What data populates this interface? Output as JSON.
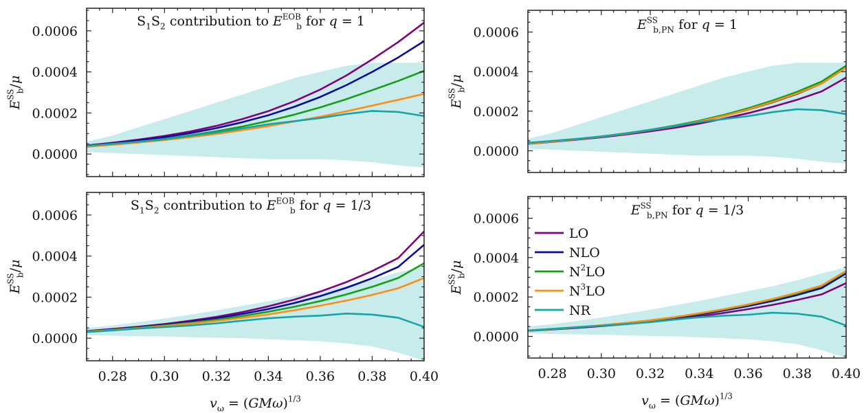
{
  "series_styles": [
    {
      "name": "LO",
      "color": "#800080"
    },
    {
      "name": "NLO",
      "color": "#0a0aa0"
    },
    {
      "name": "N²LO",
      "color": "#14a014"
    },
    {
      "name": "N³LO",
      "color": "#ff8c14"
    },
    {
      "name": "NR",
      "color": "#14a5a5"
    }
  ],
  "band_color": "#c8eceb",
  "legend_panel": 3,
  "xlabel": "v_ω = (GMω)^{1/3}",
  "chart_data": [
    {
      "type": "line",
      "title": "S₁S₂ contribution to E_b^EOB for q = 1",
      "ylabel": "E_b^SS/μ",
      "xlim": [
        0.27,
        0.4
      ],
      "ylim": [
        -0.00011,
        0.00071
      ],
      "xticks": [
        "0.28",
        "0.30",
        "0.32",
        "0.34",
        "0.36",
        "0.38",
        "0.40"
      ],
      "yticks": [
        "0.0000",
        "0.0002",
        "0.0004",
        "0.0006"
      ],
      "x": [
        0.27,
        0.28,
        0.29,
        0.3,
        0.31,
        0.32,
        0.33,
        0.34,
        0.35,
        0.36,
        0.37,
        0.38,
        0.39,
        0.4
      ],
      "series": [
        {
          "name": "LO",
          "values": [
            4.2e-05,
            5.5e-05,
            7e-05,
            8.8e-05,
            0.00011,
            0.000137,
            0.00017,
            0.000209,
            0.000257,
            0.000314,
            0.000382,
            0.000461,
            0.000545,
            0.00064
          ]
        },
        {
          "name": "NLO",
          "values": [
            4e-05,
            5.2e-05,
            6.6e-05,
            8.2e-05,
            0.000102,
            0.000126,
            0.000155,
            0.000189,
            0.00023,
            0.000278,
            0.000335,
            0.0004,
            0.00047,
            0.00055
          ]
        },
        {
          "name": "N²LO",
          "values": [
            3.7e-05,
            4.8e-05,
            6e-05,
            7.4e-05,
            9.1e-05,
            0.000111,
            0.000134,
            0.000161,
            0.000192,
            0.000227,
            0.000267,
            0.000311,
            0.000356,
            0.000405
          ]
        },
        {
          "name": "N³LO",
          "values": [
            3.5e-05,
            4.5e-05,
            5.6e-05,
            6.8e-05,
            8.2e-05,
            9.8e-05,
            0.000116,
            0.000136,
            0.000158,
            0.000182,
            0.000208,
            0.000236,
            0.000264,
            0.000293
          ]
        },
        {
          "name": "NR",
          "values": [
            4e-05,
            5e-05,
            6e-05,
            7.2e-05,
            8.8e-05,
            0.000105,
            0.000125,
            0.000145,
            0.00016,
            0.000175,
            0.000195,
            0.00021,
            0.000205,
            0.000185
          ]
        }
      ],
      "band": {
        "lower": [
          1e-05,
          5e-06,
          0.0,
          -5e-06,
          -1e-05,
          -1.5e-05,
          -2e-05,
          -2.5e-05,
          -2.5e-05,
          -2.5e-05,
          -3e-05,
          -4e-05,
          -5.5e-05,
          -6.5e-05
        ],
        "upper": [
          6e-05,
          9e-05,
          0.00013,
          0.00017,
          0.00021,
          0.00025,
          0.00029,
          0.00033,
          0.00037,
          0.0004,
          0.00043,
          0.000445,
          0.000445,
          0.000445
        ]
      }
    },
    {
      "type": "line",
      "title": "E_{b,PN}^SS for q = 1",
      "ylabel": "E_b^SS/μ",
      "xlim": [
        0.27,
        0.4
      ],
      "ylim": [
        -0.00011,
        0.00071
      ],
      "xticks": [
        "0.28",
        "0.30",
        "0.32",
        "0.34",
        "0.36",
        "0.38",
        "0.40"
      ],
      "yticks": [
        "0.0000",
        "0.0002",
        "0.0004",
        "0.0006"
      ],
      "x": [
        0.27,
        0.28,
        0.29,
        0.3,
        0.31,
        0.32,
        0.33,
        0.34,
        0.35,
        0.36,
        0.37,
        0.38,
        0.39,
        0.4
      ],
      "series": [
        {
          "name": "LO",
          "values": [
            3.5e-05,
            4.5e-05,
            5.6e-05,
            6.8e-05,
            8.2e-05,
            9.8e-05,
            0.000116,
            0.000137,
            0.000162,
            0.00019,
            0.000222,
            0.000258,
            0.0003,
            0.00037
          ]
        },
        {
          "name": "NLO",
          "values": [
            3.6e-05,
            4.6e-05,
            5.8e-05,
            7.1e-05,
            8.6e-05,
            0.000104,
            0.000124,
            0.000148,
            0.000176,
            0.000208,
            0.000245,
            0.000288,
            0.00034,
            0.00042
          ]
        },
        {
          "name": "N²LO",
          "values": [
            3.6e-05,
            4.7e-05,
            5.9e-05,
            7.2e-05,
            8.8e-05,
            0.000106,
            0.000127,
            0.000152,
            0.000181,
            0.000215,
            0.000254,
            0.000298,
            0.00035,
            0.00043
          ]
        },
        {
          "name": "N³LO",
          "values": [
            3.6e-05,
            4.6e-05,
            5.8e-05,
            7.1e-05,
            8.6e-05,
            0.000104,
            0.000124,
            0.000148,
            0.000176,
            0.000209,
            0.000247,
            0.00029,
            0.00034,
            0.00042
          ]
        },
        {
          "name": "NR",
          "values": [
            4e-05,
            5e-05,
            6e-05,
            7.2e-05,
            8.8e-05,
            0.000105,
            0.000125,
            0.000145,
            0.00016,
            0.000175,
            0.000195,
            0.00021,
            0.000205,
            0.000185
          ]
        }
      ],
      "band": {
        "lower": [
          1e-05,
          5e-06,
          0.0,
          -5e-06,
          -1e-05,
          -1.5e-05,
          -2e-05,
          -2.5e-05,
          -2.5e-05,
          -2.5e-05,
          -3e-05,
          -4e-05,
          -5.5e-05,
          -6.5e-05
        ],
        "upper": [
          6e-05,
          9e-05,
          0.00013,
          0.00017,
          0.00021,
          0.00025,
          0.00029,
          0.00033,
          0.00037,
          0.0004,
          0.00043,
          0.000445,
          0.000445,
          0.000445
        ]
      }
    },
    {
      "type": "line",
      "title": "S₁S₂ contribution to E_b^EOB for q = 1/3",
      "ylabel": "E_b^SS/μ",
      "xlim": [
        0.27,
        0.4
      ],
      "ylim": [
        -0.00011,
        0.00071
      ],
      "xticks": [
        "0.28",
        "0.30",
        "0.32",
        "0.34",
        "0.36",
        "0.38",
        "0.40"
      ],
      "yticks": [
        "0.0000",
        "0.0002",
        "0.0004",
        "0.0006"
      ],
      "x": [
        0.27,
        0.28,
        0.29,
        0.3,
        0.31,
        0.32,
        0.33,
        0.34,
        0.35,
        0.36,
        0.37,
        0.38,
        0.39,
        0.4
      ],
      "series": [
        {
          "name": "LO",
          "values": [
            3.5e-05,
            4.5e-05,
            5.6e-05,
            6.9e-05,
            8.5e-05,
            0.000104,
            0.000127,
            0.000155,
            0.000188,
            0.000227,
            0.000273,
            0.000327,
            0.00039,
            0.00052
          ]
        },
        {
          "name": "NLO",
          "values": [
            3.4e-05,
            4.3e-05,
            5.3e-05,
            6.5e-05,
            8e-05,
            9.7e-05,
            0.000118,
            0.000142,
            0.000171,
            0.000205,
            0.000245,
            0.000292,
            0.000347,
            0.000455
          ]
        },
        {
          "name": "N²LO",
          "values": [
            3.3e-05,
            4.1e-05,
            5.1e-05,
            6.2e-05,
            7.5e-05,
            9e-05,
            0.000108,
            0.000129,
            0.000153,
            0.000181,
            0.000213,
            0.00025,
            0.000293,
            0.000365
          ]
        },
        {
          "name": "N³LO",
          "values": [
            3.2e-05,
            4e-05,
            4.9e-05,
            5.9e-05,
            7.1e-05,
            8.4e-05,
            9.9e-05,
            0.000116,
            0.000136,
            0.000158,
            0.000183,
            0.000211,
            0.000243,
            0.000293
          ]
        },
        {
          "name": "NR",
          "values": [
            3e-05,
            3.8e-05,
            4.7e-05,
            5.4e-05,
            6.2e-05,
            7.2e-05,
            8.5e-05,
            9.7e-05,
            0.000105,
            0.00011,
            0.00012,
            0.000115,
            0.0001,
            5.5e-05
          ]
        }
      ],
      "band": {
        "lower": [
          1.5e-05,
          1.2e-05,
          1e-05,
          8e-06,
          5e-06,
          2e-06,
          0.0,
          -5e-06,
          -1e-05,
          -1.5e-05,
          -2.5e-05,
          -4e-05,
          -7e-05,
          -0.00011
        ],
        "upper": [
          5e-05,
          6.2e-05,
          7.8e-05,
          9.6e-05,
          0.000115,
          0.000135,
          0.000158,
          0.00018,
          0.000205,
          0.00023,
          0.000255,
          0.000285,
          0.00032,
          0.00035
        ]
      }
    },
    {
      "type": "line",
      "title": "E_{b,PN}^SS for q = 1/3",
      "ylabel": "E_b^SS/μ",
      "xlim": [
        0.27,
        0.4
      ],
      "ylim": [
        -0.00011,
        0.00071
      ],
      "xticks": [
        "0.28",
        "0.30",
        "0.32",
        "0.34",
        "0.36",
        "0.38",
        "0.40"
      ],
      "yticks": [
        "0.0000",
        "0.0002",
        "0.0004",
        "0.0006"
      ],
      "x": [
        0.27,
        0.28,
        0.29,
        0.3,
        0.31,
        0.32,
        0.33,
        0.34,
        0.35,
        0.36,
        0.37,
        0.38,
        0.39,
        0.4
      ],
      "series": [
        {
          "name": "LO",
          "values": [
            2.8e-05,
            3.5e-05,
            4.3e-05,
            5.2e-05,
            6.2e-05,
            7.4e-05,
            8.7e-05,
            0.000102,
            0.000119,
            0.000138,
            0.00016,
            0.000185,
            0.000213,
            0.00027
          ]
        },
        {
          "name": "NLO",
          "values": [
            2.9e-05,
            3.6e-05,
            4.5e-05,
            5.5e-05,
            6.6e-05,
            7.9e-05,
            9.4e-05,
            0.000111,
            0.000131,
            0.000154,
            0.00018,
            0.00021,
            0.000245,
            0.00032
          ]
        },
        {
          "name": "N²LO",
          "values": [
            2.9e-05,
            3.7e-05,
            4.6e-05,
            5.6e-05,
            6.8e-05,
            8.1e-05,
            9.7e-05,
            0.000115,
            0.000136,
            0.00016,
            0.000187,
            0.000218,
            0.000255,
            0.000328
          ]
        },
        {
          "name": "N³LO",
          "values": [
            2.9e-05,
            3.7e-05,
            4.6e-05,
            5.6e-05,
            6.8e-05,
            8.2e-05,
            9.8e-05,
            0.000117,
            0.000138,
            0.000162,
            0.00019,
            0.000222,
            0.000258,
            0.000332
          ]
        },
        {
          "name": "NR",
          "values": [
            3e-05,
            3.8e-05,
            4.7e-05,
            5.4e-05,
            6.2e-05,
            7.2e-05,
            8.5e-05,
            9.7e-05,
            0.000105,
            0.00011,
            0.00012,
            0.000115,
            0.0001,
            5.5e-05
          ]
        }
      ],
      "band": {
        "lower": [
          1.5e-05,
          1.2e-05,
          1e-05,
          8e-06,
          5e-06,
          2e-06,
          0.0,
          -5e-06,
          -1e-05,
          -1.5e-05,
          -2.5e-05,
          -4e-05,
          -7e-05,
          -0.00011
        ],
        "upper": [
          5e-05,
          6.2e-05,
          7.8e-05,
          9.6e-05,
          0.000115,
          0.000135,
          0.000158,
          0.00018,
          0.000205,
          0.00023,
          0.000255,
          0.000285,
          0.00032,
          0.00035
        ]
      }
    }
  ]
}
